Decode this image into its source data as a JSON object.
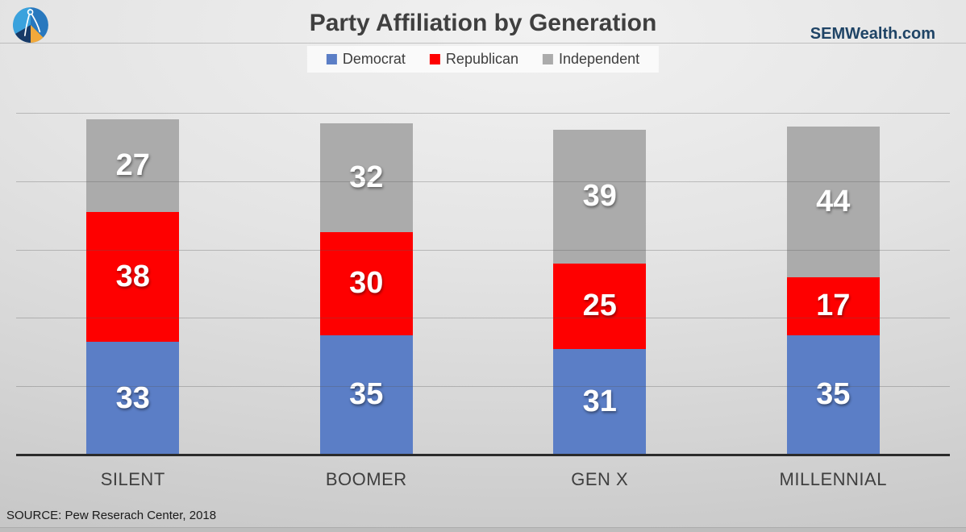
{
  "header": {
    "title": "Party Affiliation by Generation",
    "brand": "SEMWealth.com",
    "logo_icon": "pie-chart-compass-logo"
  },
  "legend": [
    {
      "label": "Democrat",
      "color": "#5B7EC6"
    },
    {
      "label": "Republican",
      "color": "#FE0000"
    },
    {
      "label": "Independent",
      "color": "#ABABAB"
    }
  ],
  "chart_data": {
    "type": "bar",
    "stacked": true,
    "title": "Party Affiliation by Generation",
    "categories": [
      "SILENT",
      "BOOMER",
      "GEN X",
      "MILLENNIAL"
    ],
    "series": [
      {
        "name": "Democrat",
        "color": "#5B7EC6",
        "values": [
          33,
          35,
          31,
          35
        ]
      },
      {
        "name": "Republican",
        "color": "#FE0000",
        "values": [
          38,
          30,
          25,
          17
        ]
      },
      {
        "name": "Independent",
        "color": "#ABABAB",
        "values": [
          27,
          32,
          39,
          44
        ]
      }
    ],
    "ylim": [
      0,
      100
    ],
    "gridline_interval": 20,
    "grid": true,
    "axis_labels_hidden": true,
    "legend_position": "top",
    "data_label_color": "#FFFFFF"
  },
  "footer": {
    "source": "SOURCE: Pew Reserach Center, 2018"
  }
}
